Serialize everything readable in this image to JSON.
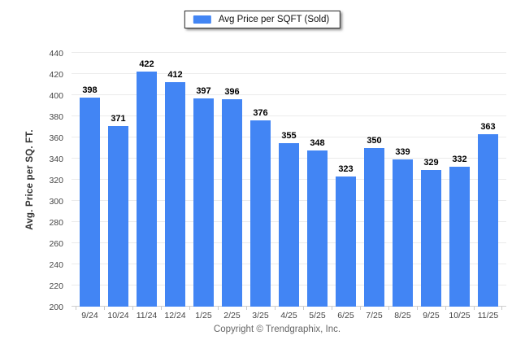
{
  "legend": {
    "label": "Avg Price per SQFT (Sold)"
  },
  "chart_data": {
    "type": "bar",
    "title": "",
    "xlabel": "",
    "ylabel": "Avg. Price per SQ. FT.",
    "categories": [
      "9/24",
      "10/24",
      "11/24",
      "12/24",
      "1/25",
      "2/25",
      "3/25",
      "4/25",
      "5/25",
      "6/25",
      "7/25",
      "8/25",
      "9/25",
      "10/25",
      "11/25"
    ],
    "values": [
      398,
      371,
      422,
      412,
      397,
      396,
      376,
      355,
      348,
      323,
      350,
      339,
      329,
      332,
      363
    ],
    "ylim": [
      200,
      440
    ],
    "yticks": [
      200,
      220,
      240,
      260,
      280,
      300,
      320,
      340,
      360,
      380,
      400,
      420,
      440
    ],
    "grid": "horizontal",
    "legend_position": "top-center",
    "legend_entries": [
      "Avg Price per SQFT (Sold)"
    ],
    "value_labels_shown": true,
    "colors": {
      "bar": "#4285f4",
      "grid": "#ebebeb",
      "axis": "#cfcfcf",
      "tick_label": "#454545",
      "value_label": "#000000"
    }
  },
  "footer": {
    "copyright": "Copyright © Trendgraphix, Inc."
  }
}
